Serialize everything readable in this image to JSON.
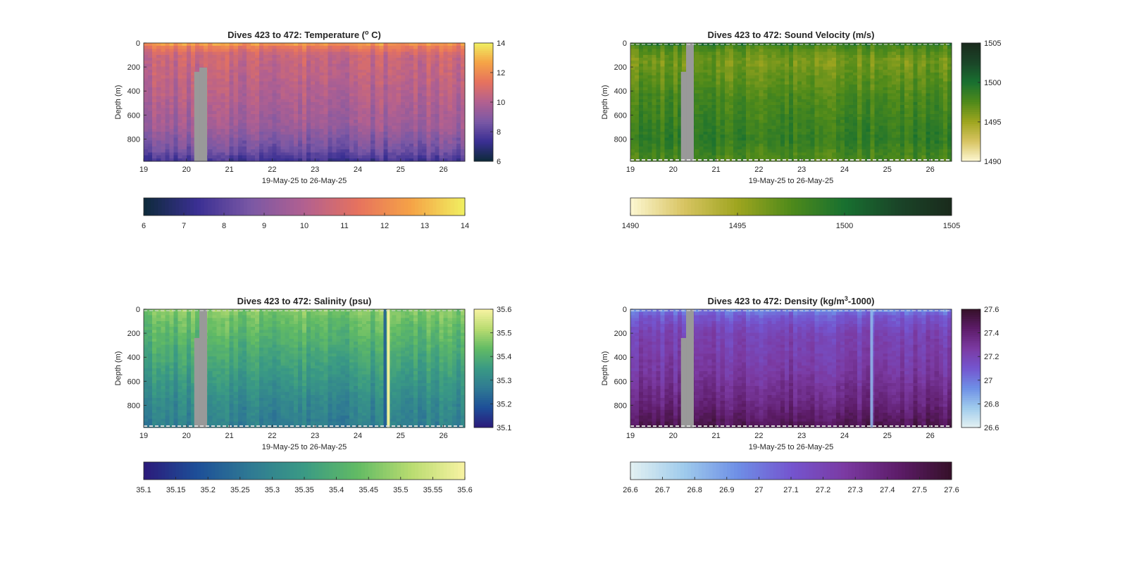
{
  "chart_data": [
    {
      "type": "heatmap",
      "title": "Dives 423 to 472: Temperature (",
      "title_sup": "o",
      "title_end": " C)",
      "xlabel": "19-May-25 to 26-May-25",
      "ylabel": "Depth (m)",
      "xlim": [
        19,
        26.5
      ],
      "ylim": [
        985,
        0
      ],
      "xticks": [
        "19",
        "20",
        "21",
        "22",
        "23",
        "24",
        "25",
        "26"
      ],
      "yticks": [
        "0",
        "200",
        "400",
        "600",
        "800"
      ],
      "colormap": [
        "#0d2a3a",
        "#3a2f93",
        "#7a58a5",
        "#b26090",
        "#e6725e",
        "#f5a346",
        "#f0f061"
      ],
      "clim": [
        6,
        14
      ],
      "side_colorbar_ticks": [
        "14",
        "12",
        "10",
        "8",
        "6"
      ],
      "bottom_colorbar_ticks": [
        "6",
        "7",
        "8",
        "9",
        "10",
        "11",
        "12",
        "13",
        "14"
      ],
      "profile": [
        {
          "depth": 0,
          "value": 12.8
        },
        {
          "depth": 25,
          "value": 11.7
        },
        {
          "depth": 100,
          "value": 10.6
        },
        {
          "depth": 400,
          "value": 10.1
        },
        {
          "depth": 700,
          "value": 9.5
        },
        {
          "depth": 900,
          "value": 8.4
        },
        {
          "depth": 985,
          "value": 7.4
        }
      ],
      "missing_data_color": "#999999",
      "has_bottom_hatch": false,
      "has_anomaly": false
    },
    {
      "type": "heatmap",
      "title": "Dives 423 to 472: Sound Velocity (m/s)",
      "xlabel": "19-May-25 to 26-May-25",
      "ylabel": "Depth (m)",
      "xlim": [
        19,
        26.5
      ],
      "ylim": [
        985,
        0
      ],
      "xticks": [
        "19",
        "20",
        "21",
        "22",
        "23",
        "24",
        "25",
        "26"
      ],
      "yticks": [
        "0",
        "200",
        "400",
        "600",
        "800"
      ],
      "colormap": [
        "#fdf7d2",
        "#d8c462",
        "#9ea51f",
        "#4f8a1a",
        "#187030",
        "#1a4528",
        "#1a2a1c"
      ],
      "clim": [
        1490,
        1505
      ],
      "side_colorbar_ticks": [
        "1505",
        "1500",
        "1495",
        "1490"
      ],
      "bottom_colorbar_ticks": [
        "1490",
        "1495",
        "1500",
        "1505"
      ],
      "profile": [
        {
          "depth": 0,
          "value": 1499.6
        },
        {
          "depth": 40,
          "value": 1497.5
        },
        {
          "depth": 150,
          "value": 1496.2
        },
        {
          "depth": 450,
          "value": 1497.8
        },
        {
          "depth": 800,
          "value": 1498.8
        },
        {
          "depth": 985,
          "value": 1497.6
        }
      ],
      "missing_data_color": "#999999",
      "has_bottom_hatch": true,
      "has_anomaly": false
    },
    {
      "type": "heatmap",
      "title": "Dives 423 to 472: Salinity (psu)",
      "xlabel": "19-May-25 to 26-May-25",
      "ylabel": "Depth (m)",
      "xlim": [
        19,
        26.5
      ],
      "ylim": [
        985,
        0
      ],
      "xticks": [
        "19",
        "20",
        "21",
        "22",
        "23",
        "24",
        "25",
        "26"
      ],
      "yticks": [
        "0",
        "200",
        "400",
        "600",
        "800"
      ],
      "colormap": [
        "#2b1a7a",
        "#1d4f98",
        "#2f7a93",
        "#3a9a84",
        "#62bb64",
        "#b9dc70",
        "#f8f3a3"
      ],
      "clim": [
        35.1,
        35.6
      ],
      "side_colorbar_ticks": [
        "35.6",
        "35.5",
        "35.4",
        "35.3",
        "35.2",
        "35.1"
      ],
      "bottom_colorbar_ticks": [
        "35.1",
        "35.15",
        "35.2",
        "35.25",
        "35.3",
        "35.35",
        "35.4",
        "35.45",
        "35.5",
        "35.55",
        "35.6"
      ],
      "profile": [
        {
          "depth": 0,
          "value": 35.47
        },
        {
          "depth": 100,
          "value": 35.44
        },
        {
          "depth": 300,
          "value": 35.4
        },
        {
          "depth": 600,
          "value": 35.34
        },
        {
          "depth": 800,
          "value": 35.3
        },
        {
          "depth": 985,
          "value": 35.28
        }
      ],
      "missing_data_color": "#999999",
      "has_bottom_hatch": true,
      "has_anomaly": true,
      "anomaly": {
        "dark_x": 24.6,
        "bright_x": 24.68
      }
    },
    {
      "type": "heatmap",
      "title": "Dives 423 to 472: Density (kg/m",
      "title_sup": "3",
      "title_end": "-1000)",
      "xlabel": "19-May-25 to 26-May-25",
      "ylabel": "Depth (m)",
      "xlim": [
        19,
        26.5
      ],
      "ylim": [
        985,
        0
      ],
      "xticks": [
        "19",
        "20",
        "21",
        "22",
        "23",
        "24",
        "25",
        "26"
      ],
      "yticks": [
        "0",
        "200",
        "400",
        "600",
        "800"
      ],
      "colormap": [
        "#e3f1f2",
        "#9fcbec",
        "#6e8fe6",
        "#7455cf",
        "#7b3aa2",
        "#5d1c69",
        "#351028"
      ],
      "clim": [
        26.6,
        27.6
      ],
      "side_colorbar_ticks": [
        "27.6",
        "27.4",
        "27.2",
        "27",
        "26.8",
        "26.6"
      ],
      "bottom_colorbar_ticks": [
        "26.6",
        "26.7",
        "26.8",
        "26.9",
        "27",
        "27.1",
        "27.2",
        "27.3",
        "27.4",
        "27.5",
        "27.6"
      ],
      "profile": [
        {
          "depth": 0,
          "value": 26.92
        },
        {
          "depth": 50,
          "value": 27.08
        },
        {
          "depth": 200,
          "value": 27.2
        },
        {
          "depth": 500,
          "value": 27.26
        },
        {
          "depth": 800,
          "value": 27.38
        },
        {
          "depth": 985,
          "value": 27.5
        }
      ],
      "missing_data_color": "#999999",
      "has_bottom_hatch": true,
      "has_anomaly": true,
      "anomaly": {
        "dark_x": 24.6
      }
    }
  ]
}
